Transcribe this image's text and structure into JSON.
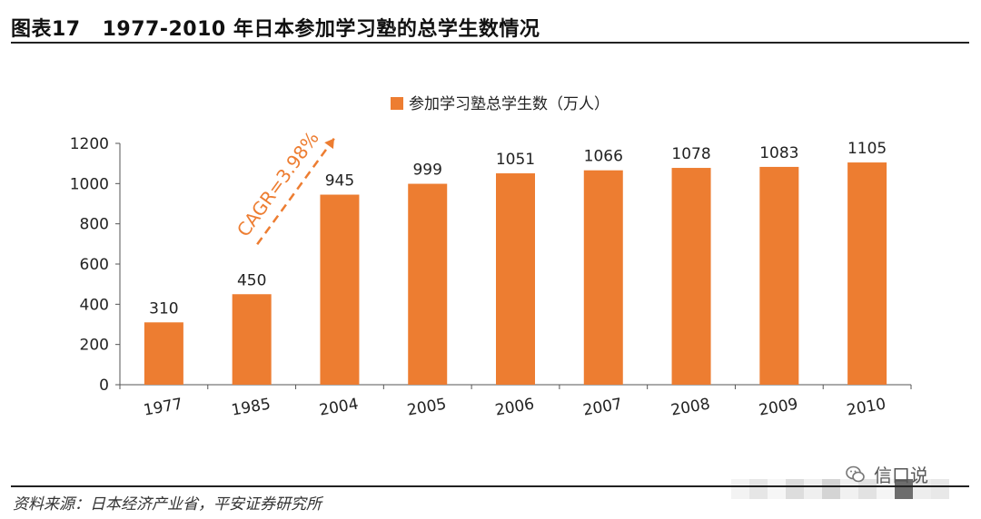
{
  "figure": {
    "number": "图表17",
    "title": "1977-2010 年日本参加学习塾的总学生数情况"
  },
  "source": "资料来源：日本经济产业省，平安证券研究所",
  "watermark": "信口说",
  "colors": {
    "bar": "#ed7d31",
    "annotation": "#ed7d31",
    "axis": "#555555"
  },
  "chart_data": {
    "type": "bar",
    "categories": [
      "1977",
      "1985",
      "2004",
      "2005",
      "2006",
      "2007",
      "2008",
      "2009",
      "2010"
    ],
    "series": [
      {
        "name": "参加学习塾总学生数（万人）",
        "values": [
          310,
          450,
          945,
          999,
          1051,
          1066,
          1078,
          1083,
          1105
        ]
      }
    ],
    "ylim": [
      0,
      1200
    ],
    "yticks": [
      0,
      200,
      400,
      600,
      800,
      1000,
      1200
    ],
    "xlabel": "",
    "ylabel": "",
    "legend": "top-center",
    "grid": false,
    "annotation": {
      "text": "CAGR=3.98%",
      "from": "1985",
      "to": "2004"
    }
  }
}
